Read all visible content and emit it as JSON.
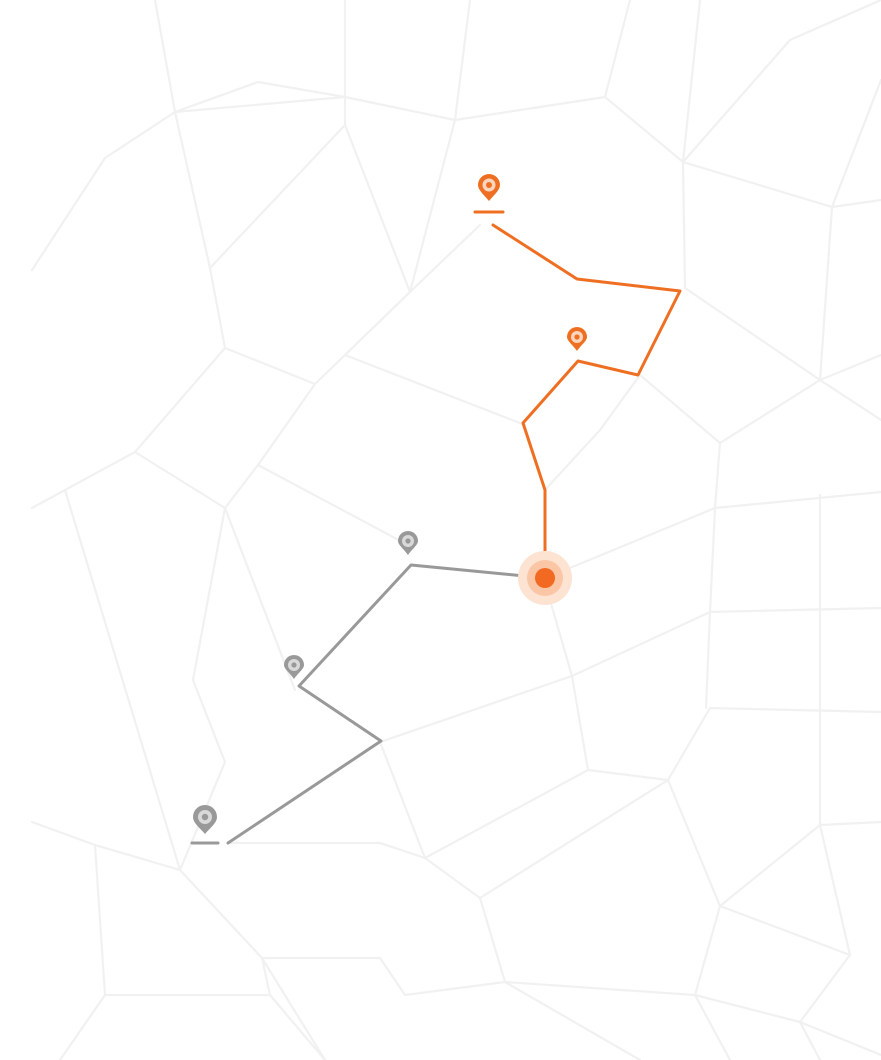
{
  "map": {
    "colors": {
      "background": "#ffffff",
      "street": "#f1f1f1",
      "route_ahead": "#ef6f22",
      "route_traveled": "#999999",
      "current_position": "#f26a21",
      "current_position_halo": "#fbd5bd"
    },
    "route_ahead": {
      "name": "remaining-route",
      "status": "upcoming",
      "start_marker_icon": "map-pin-icon",
      "waypoint_icon": "map-pin-icon"
    },
    "route_traveled": {
      "name": "traveled-route",
      "status": "completed",
      "start_marker_icon": "map-pin-icon",
      "waypoint_icon": "map-pin-icon"
    },
    "current_position": {
      "icon": "location-dot-icon"
    }
  }
}
